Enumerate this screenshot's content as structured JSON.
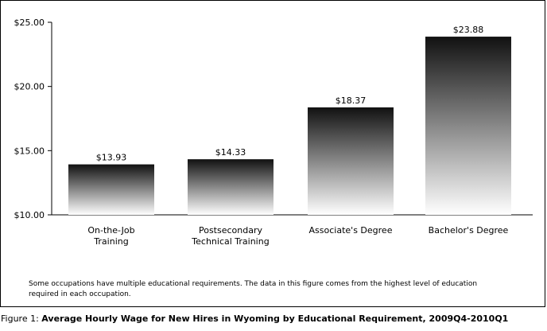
{
  "chart_data": {
    "type": "bar",
    "categories": [
      [
        "On-the-Job",
        "Training"
      ],
      [
        "Postsecondary",
        "Technical Training"
      ],
      [
        "Associate's Degree"
      ],
      [
        "Bachelor's Degree"
      ]
    ],
    "values": [
      13.93,
      14.33,
      18.37,
      23.88
    ],
    "value_labels": [
      "$13.93",
      "$14.33",
      "$18.37",
      "$23.88"
    ],
    "yticks": [
      10,
      15,
      20,
      25
    ],
    "ytick_labels": [
      "$10.00",
      "$15.00",
      "$20.00",
      "$25.00"
    ],
    "ylim": [
      10,
      25
    ],
    "grid": false,
    "colors": {
      "bar_top": "#111111",
      "bar_bottom": "#ffffff"
    }
  },
  "note": "Some occupations have multiple educational requirements. The data in this figure comes from the highest level of education required in each occupation.",
  "caption": {
    "prefix": "Figure 1: ",
    "title": "Average Hourly Wage for New Hires in Wyoming by Educational Requirement, 2009Q4-2010Q1"
  }
}
